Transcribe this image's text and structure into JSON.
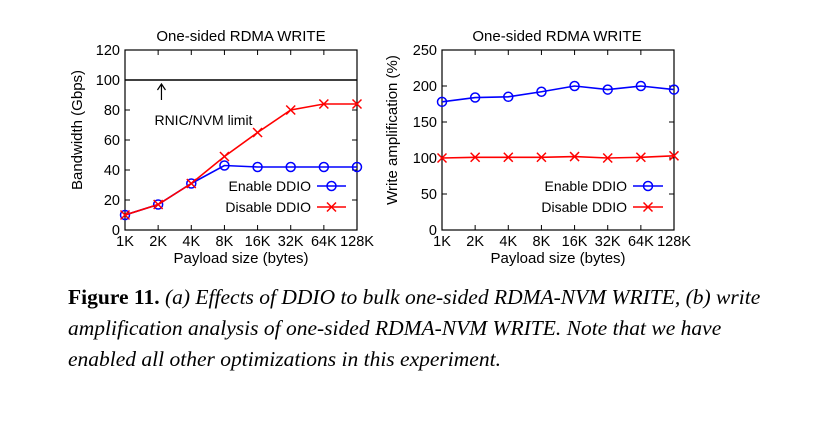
{
  "chart_data": [
    {
      "type": "line",
      "title": "One-sided RDMA WRITE",
      "xlabel": "Payload size (bytes)",
      "ylabel": "Bandwidth (Gbps)",
      "categories": [
        "1K",
        "2K",
        "4K",
        "8K",
        "16K",
        "32K",
        "64K",
        "128K"
      ],
      "ylim": [
        0,
        120
      ],
      "yticks": [
        0,
        20,
        40,
        60,
        80,
        100,
        120
      ],
      "legend_position": "bottom-right",
      "series": [
        {
          "name": "Enable DDIO",
          "color": "#0000ff",
          "marker": "circle",
          "values": [
            10,
            17,
            31,
            43,
            42,
            42,
            42,
            42
          ]
        },
        {
          "name": "Disable DDIO",
          "color": "#ff0000",
          "marker": "x",
          "values": [
            10,
            17,
            31,
            49,
            65,
            80,
            84,
            84
          ]
        }
      ],
      "reference_line": {
        "value": 100,
        "color": "#000000"
      },
      "annotation": {
        "text": "RNIC/NVM limit",
        "arrow": "up",
        "points_to": 100
      }
    },
    {
      "type": "line",
      "title": "One-sided RDMA WRITE",
      "xlabel": "Payload size (bytes)",
      "ylabel": "Write amplification (%)",
      "categories": [
        "1K",
        "2K",
        "4K",
        "8K",
        "16K",
        "32K",
        "64K",
        "128K"
      ],
      "ylim": [
        0,
        250
      ],
      "yticks": [
        0,
        50,
        100,
        150,
        200,
        250
      ],
      "legend_position": "bottom-right",
      "series": [
        {
          "name": "Enable DDIO",
          "color": "#0000ff",
          "marker": "circle",
          "values": [
            178,
            184,
            185,
            192,
            200,
            195,
            200,
            195
          ]
        },
        {
          "name": "Disable DDIO",
          "color": "#ff0000",
          "marker": "x",
          "values": [
            100,
            101,
            101,
            101,
            102,
            100,
            101,
            103
          ]
        }
      ]
    }
  ],
  "caption": {
    "label": "Figure 11.",
    "text": "(a) Effects of DDIO to bulk one-sided RDMA-NVM WRITE, (b) write amplification analysis of one-sided RDMA-NVM WRITE. Note that we have enabled all other optimizations in this experiment."
  }
}
